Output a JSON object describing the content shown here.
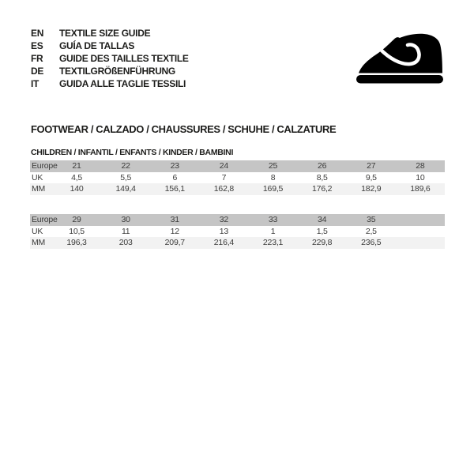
{
  "colors": {
    "band_gray": "#c5c5c5",
    "band_light": "#f2f2f2",
    "table_text": "#3c3c3b",
    "ink": "#1d1d1b",
    "logo_black": "#000000"
  },
  "header": {
    "languages": [
      {
        "code": "EN",
        "label": "TEXTILE SIZE GUIDE"
      },
      {
        "code": "ES",
        "label": "GUÍA DE TALLAS"
      },
      {
        "code": "FR",
        "label": "GUIDE DES TAILLES TEXTILE"
      },
      {
        "code": "DE",
        "label": "TEXTILGRÖßENFÜHRUNG"
      },
      {
        "code": "IT",
        "label": "GUIDA ALLE TAGLIE TESSILI"
      }
    ],
    "logo_icon": "children-shoe-icon"
  },
  "section": {
    "title": "FOOTWEAR / CALZADO / CHAUSSURES / SCHUHE / CALZATURE",
    "subtitle": "CHILDREN / INFANTIL / ENFANTS / KINDER / BAMBINI"
  },
  "size_tables": {
    "column_count": 8,
    "tables": [
      {
        "rows": [
          {
            "label": "Europe",
            "values": [
              "21",
              "22",
              "23",
              "24",
              "25",
              "26",
              "27",
              "28"
            ]
          },
          {
            "label": "UK",
            "values": [
              "4,5",
              "5,5",
              "6",
              "7",
              "8",
              "8,5",
              "9,5",
              "10"
            ]
          },
          {
            "label": "MM",
            "values": [
              "140",
              "149,4",
              "156,1",
              "162,8",
              "169,5",
              "176,2",
              "182,9",
              "189,6"
            ]
          }
        ]
      },
      {
        "rows": [
          {
            "label": "Europe",
            "values": [
              "29",
              "30",
              "31",
              "32",
              "33",
              "34",
              "35"
            ]
          },
          {
            "label": "UK",
            "values": [
              "10,5",
              "11",
              "12",
              "13",
              "1",
              "1,5",
              "2,5"
            ]
          },
          {
            "label": "MM",
            "values": [
              "196,3",
              "203",
              "209,7",
              "216,4",
              "223,1",
              "229,8",
              "236,5"
            ]
          }
        ]
      }
    ]
  }
}
